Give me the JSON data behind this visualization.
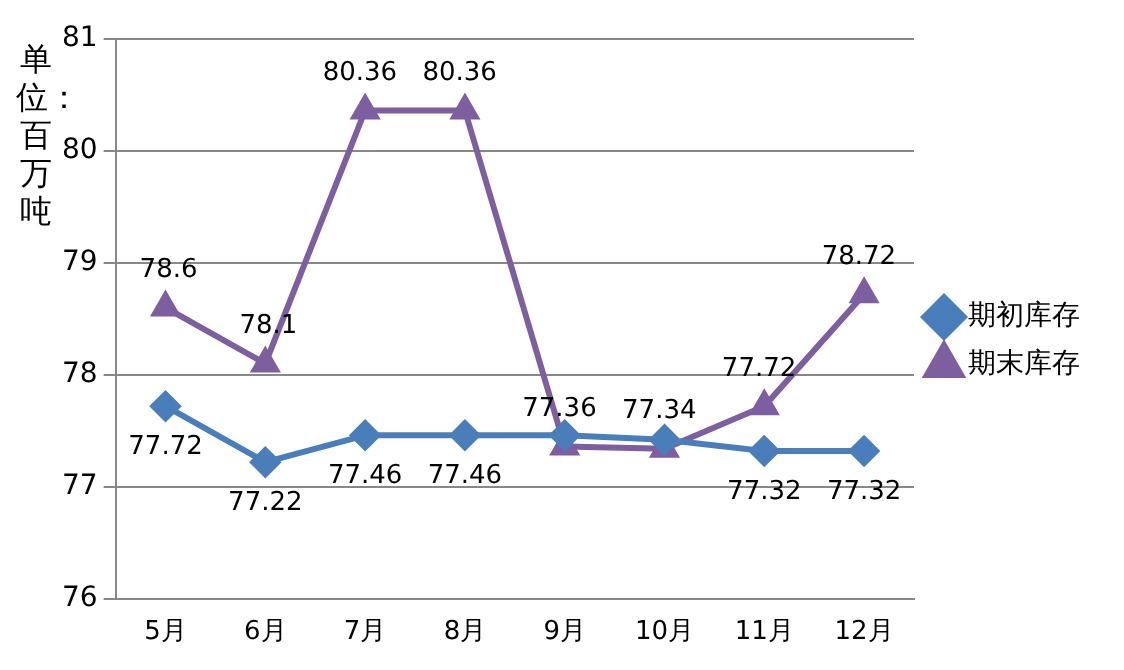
{
  "chart_data": {
    "type": "line",
    "ylabel": "单位：百万吨",
    "categories": [
      "5月",
      "6月",
      "7月",
      "8月",
      "9月",
      "10月",
      "11月",
      "12月"
    ],
    "series": [
      {
        "name": "期初库存",
        "color": "#4a7ebb",
        "marker": "diamond",
        "values": [
          77.72,
          77.22,
          77.46,
          77.46,
          77.46,
          77.42,
          77.32,
          77.32
        ],
        "value_labels": [
          "77.72",
          "77.22",
          "77.46",
          "77.46",
          null,
          null,
          "77.32",
          "77.32"
        ]
      },
      {
        "name": "期末库存",
        "color": "#7d5fa0",
        "marker": "triangle",
        "values": [
          78.6,
          78.1,
          80.36,
          80.36,
          77.36,
          77.34,
          77.72,
          78.72
        ],
        "value_labels": [
          "78.6",
          "78.1",
          "80.36",
          "80.36",
          "77.36",
          "77.34",
          "77.72",
          "78.72"
        ]
      }
    ],
    "ylim": [
      76,
      81
    ],
    "yticks": [
      76,
      77,
      78,
      79,
      80,
      81
    ],
    "grid": "y",
    "legend": "right"
  }
}
